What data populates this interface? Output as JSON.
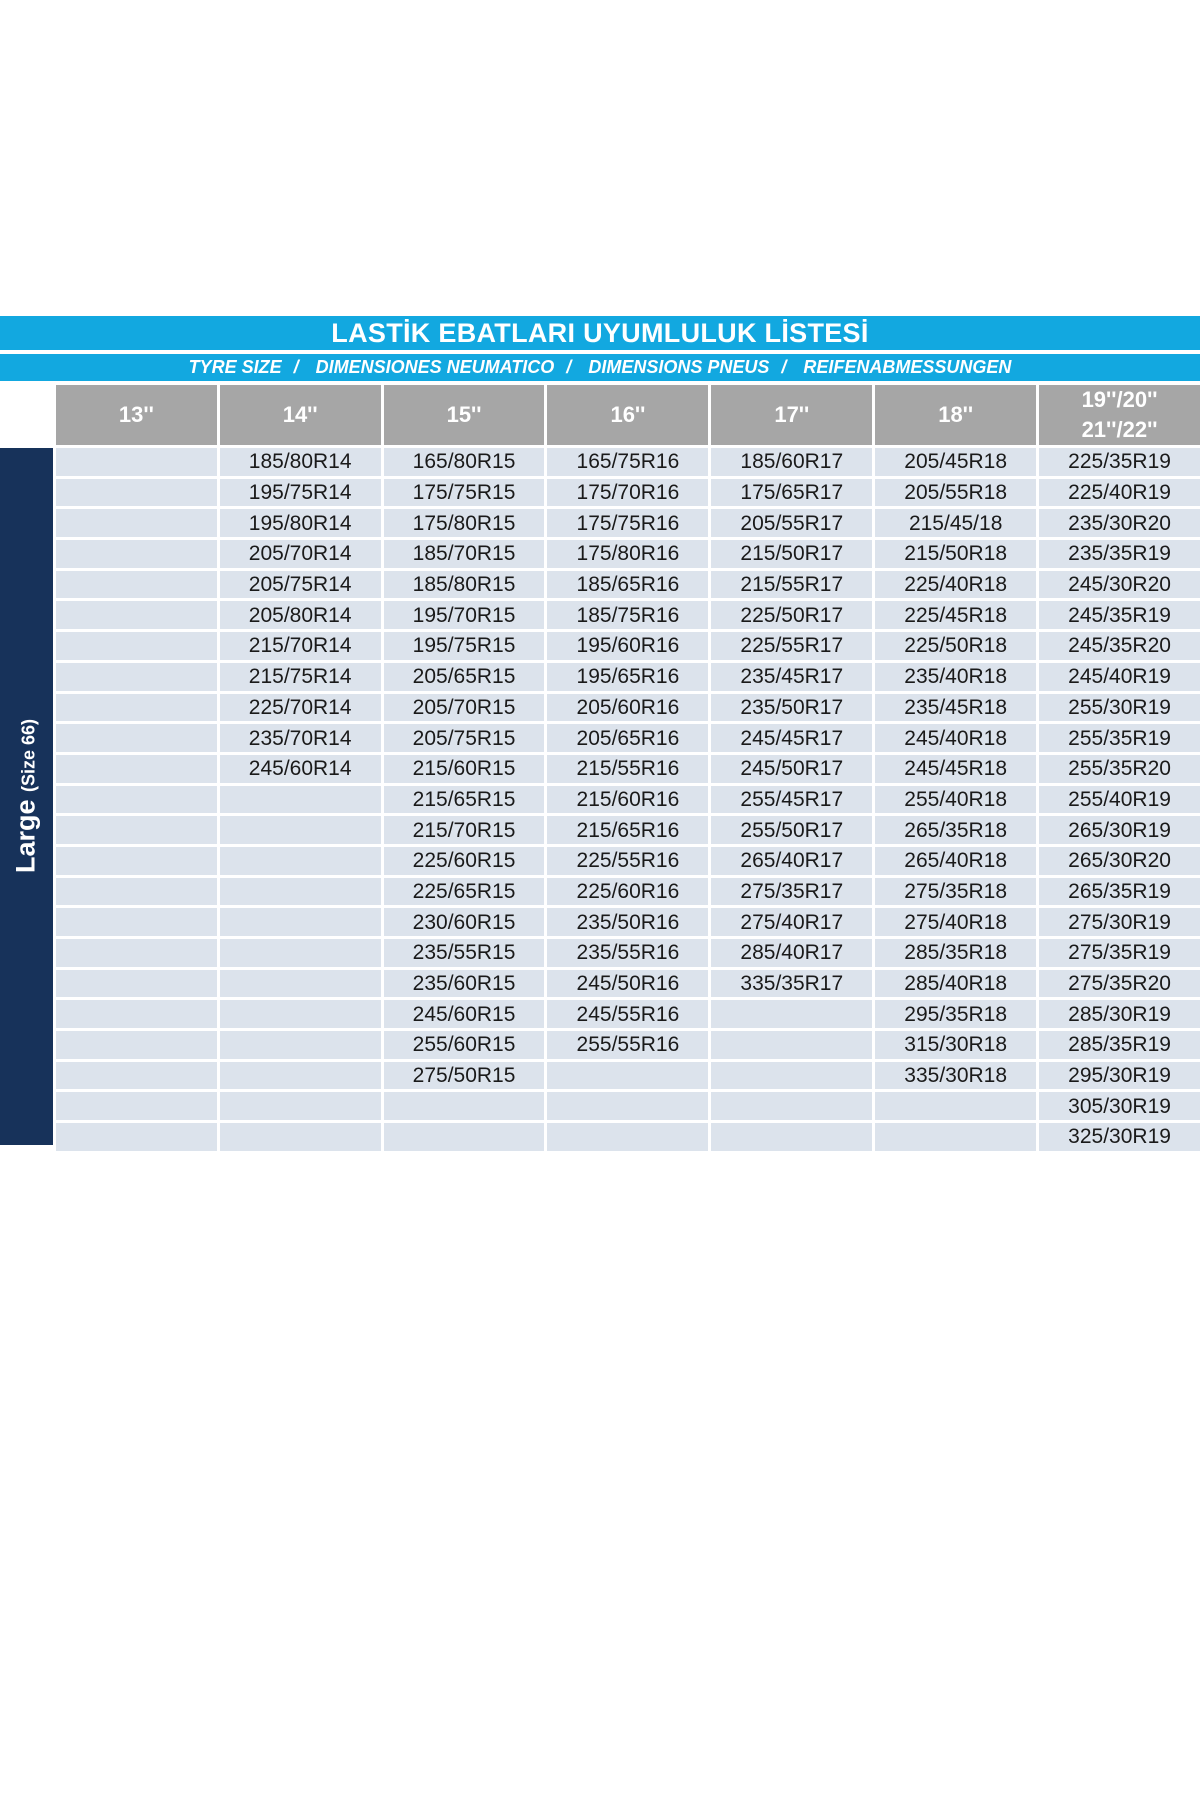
{
  "title": "LASTİK EBATLARI UYUMLULUK LİSTESİ",
  "subtitles": [
    "TYRE SIZE",
    "DIMENSIONES NEUMATICO",
    "DIMENSIONS PNEUS",
    "REIFENABMESSUNGEN"
  ],
  "separator": "/",
  "side_label": {
    "main": "Large",
    "sub": "(Size 66)"
  },
  "colors": {
    "title_bar": "#12a8e0",
    "side_bar": "#17325a",
    "header": "#a6a6a6",
    "cell": "#dce3ec"
  },
  "headers": [
    "13''",
    "14''",
    "15''",
    "16''",
    "17''",
    "18''",
    "19''/20'' 21''/22''"
  ],
  "columns": [
    [],
    [
      "185/80R14",
      "195/75R14",
      "195/80R14",
      "205/70R14",
      "205/75R14",
      "205/80R14",
      "215/70R14",
      "215/75R14",
      "225/70R14",
      "235/70R14",
      "245/60R14"
    ],
    [
      "165/80R15",
      "175/75R15",
      "175/80R15",
      "185/70R15",
      "185/80R15",
      "195/70R15",
      "195/75R15",
      "205/65R15",
      "205/70R15",
      "205/75R15",
      "215/60R15",
      "215/65R15",
      "215/70R15",
      "225/60R15",
      "225/65R15",
      "230/60R15",
      "235/55R15",
      "235/60R15",
      "245/60R15",
      "255/60R15",
      "275/50R15"
    ],
    [
      "165/75R16",
      "175/70R16",
      "175/75R16",
      "175/80R16",
      "185/65R16",
      "185/75R16",
      "195/60R16",
      "195/65R16",
      "205/60R16",
      "205/65R16",
      "215/55R16",
      "215/60R16",
      "215/65R16",
      "225/55R16",
      "225/60R16",
      "235/50R16",
      "235/55R16",
      "245/50R16",
      "245/55R16",
      "255/55R16"
    ],
    [
      "185/60R17",
      "175/65R17",
      "205/55R17",
      "215/50R17",
      "215/55R17",
      "225/50R17",
      "225/55R17",
      "235/45R17",
      "235/50R17",
      "245/45R17",
      "245/50R17",
      "255/45R17",
      "255/50R17",
      "265/40R17",
      "275/35R17",
      "275/40R17",
      "285/40R17",
      "335/35R17"
    ],
    [
      "205/45R18",
      "205/55R18",
      "215/45/18",
      "215/50R18",
      "225/40R18",
      "225/45R18",
      "225/50R18",
      "235/40R18",
      "235/45R18",
      "245/40R18",
      "245/45R18",
      "255/40R18",
      "265/35R18",
      "265/40R18",
      "275/35R18",
      "275/40R18",
      "285/35R18",
      "285/40R18",
      "295/35R18",
      "315/30R18",
      "335/30R18"
    ],
    [
      "225/35R19",
      "225/40R19",
      "235/30R20",
      "235/35R19",
      "245/30R20",
      "245/35R19",
      "245/35R20",
      "245/40R19",
      "255/30R19",
      "255/35R19",
      "255/35R20",
      "255/40R19",
      "265/30R19",
      "265/30R20",
      "265/35R19",
      "275/30R19",
      "275/35R19",
      "275/35R20",
      "285/30R19",
      "285/35R19",
      "295/30R19",
      "305/30R19",
      "325/30R19"
    ]
  ]
}
